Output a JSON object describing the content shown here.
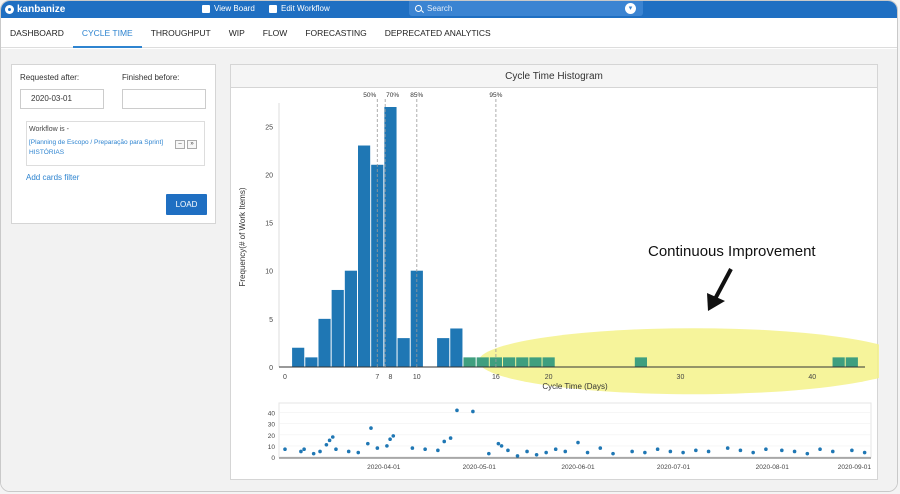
{
  "topbar": {
    "brand": "kanbanize",
    "view_board": "View Board",
    "edit_workflow": "Edit Workflow",
    "search_placeholder": "Search"
  },
  "tabs": [
    {
      "label": "DASHBOARD",
      "active": false
    },
    {
      "label": "CYCLE TIME",
      "active": true
    },
    {
      "label": "THROUGHPUT",
      "active": false
    },
    {
      "label": "WIP",
      "active": false
    },
    {
      "label": "FLOW",
      "active": false
    },
    {
      "label": "FORECASTING",
      "active": false
    },
    {
      "label": "DEPRECATED ANALYTICS",
      "active": false
    }
  ],
  "filters": {
    "requested_after_label": "Requested after:",
    "requested_after_value": "2020-03-01",
    "finished_before_label": "Finished before:",
    "finished_before_value": "",
    "workflow_label": "Workflow is -",
    "workflow_value": "[Planning de Escopo / Preparação para Sprint] HISTÓRIAS",
    "add_filter": "Add cards filter",
    "load_button": "LOAD"
  },
  "chart_title": "Cycle Time Histogram",
  "annotation": "Continuous Improvement",
  "colors": {
    "bar": "#1f77b4",
    "highlight_bar": "#3f9f7f",
    "ellipse": "#f5f28a",
    "topbar": "#1f6fc2"
  },
  "chart_data": [
    {
      "type": "bar",
      "title": "Cycle Time Histogram",
      "xlabel": "Cycle Time (Days)",
      "ylabel": "Frequency(# of Work Items)",
      "x": [
        1,
        2,
        3,
        4,
        5,
        6,
        7,
        8,
        9,
        10,
        11,
        12,
        13,
        14,
        15,
        16,
        17,
        18,
        19,
        20,
        27,
        42,
        43
      ],
      "values": [
        2,
        1,
        5,
        8,
        10,
        23,
        21,
        27,
        3,
        10,
        0,
        3,
        4,
        1,
        1,
        1,
        1,
        1,
        1,
        1,
        1,
        1,
        1
      ],
      "xlim": [
        0,
        44
      ],
      "ylim": [
        0,
        27
      ],
      "xticks": [
        0,
        7,
        8,
        10,
        16,
        20,
        30,
        40
      ],
      "yticks": [
        0,
        5,
        10,
        15,
        20,
        25
      ],
      "percentiles": [
        {
          "label": "50%",
          "value": 7
        },
        {
          "label": "70%",
          "value": 7.6
        },
        {
          "label": "85%",
          "value": 10
        },
        {
          "label": "95%",
          "value": 16
        }
      ]
    },
    {
      "type": "scatter",
      "x_dates": [
        "2020-04-01",
        "2020-05-01",
        "2020-06-01",
        "2020-07-01",
        "2020-08-01",
        "2020-09-01"
      ],
      "yticks": [
        0,
        10,
        20,
        30,
        40
      ],
      "ylim": [
        0,
        45
      ],
      "points": [
        [
          "2020-03-01",
          7
        ],
        [
          "2020-03-06",
          5
        ],
        [
          "2020-03-07",
          7
        ],
        [
          "2020-03-10",
          3
        ],
        [
          "2020-03-12",
          5
        ],
        [
          "2020-03-14",
          11
        ],
        [
          "2020-03-15",
          15
        ],
        [
          "2020-03-16",
          18
        ],
        [
          "2020-03-17",
          7
        ],
        [
          "2020-03-21",
          5
        ],
        [
          "2020-03-24",
          4
        ],
        [
          "2020-03-27",
          12
        ],
        [
          "2020-03-28",
          26
        ],
        [
          "2020-03-30",
          8
        ],
        [
          "2020-04-02",
          10
        ],
        [
          "2020-04-03",
          16
        ],
        [
          "2020-04-04",
          19
        ],
        [
          "2020-04-10",
          8
        ],
        [
          "2020-04-14",
          7
        ],
        [
          "2020-04-18",
          6
        ],
        [
          "2020-04-20",
          14
        ],
        [
          "2020-04-22",
          17
        ],
        [
          "2020-04-24",
          42
        ],
        [
          "2020-04-29",
          41
        ],
        [
          "2020-05-04",
          3
        ],
        [
          "2020-05-07",
          12
        ],
        [
          "2020-05-08",
          10
        ],
        [
          "2020-05-10",
          6
        ],
        [
          "2020-05-13",
          1
        ],
        [
          "2020-05-16",
          5
        ],
        [
          "2020-05-19",
          2
        ],
        [
          "2020-05-22",
          4
        ],
        [
          "2020-05-25",
          7
        ],
        [
          "2020-05-28",
          5
        ],
        [
          "2020-06-01",
          13
        ],
        [
          "2020-06-04",
          4
        ],
        [
          "2020-06-08",
          8
        ],
        [
          "2020-06-12",
          3
        ],
        [
          "2020-06-18",
          5
        ],
        [
          "2020-06-22",
          4
        ],
        [
          "2020-06-26",
          7
        ],
        [
          "2020-06-30",
          5
        ],
        [
          "2020-07-04",
          4
        ],
        [
          "2020-07-08",
          6
        ],
        [
          "2020-07-12",
          5
        ],
        [
          "2020-07-18",
          8
        ],
        [
          "2020-07-22",
          6
        ],
        [
          "2020-07-26",
          4
        ],
        [
          "2020-07-30",
          7
        ],
        [
          "2020-08-04",
          6
        ],
        [
          "2020-08-08",
          5
        ],
        [
          "2020-08-12",
          3
        ],
        [
          "2020-08-16",
          7
        ],
        [
          "2020-08-20",
          5
        ],
        [
          "2020-08-26",
          6
        ],
        [
          "2020-08-30",
          4
        ],
        [
          "2020-09-05",
          7
        ],
        [
          "2020-09-10",
          5
        ],
        [
          "2020-09-15",
          6
        ],
        [
          "2020-09-20",
          4
        ],
        [
          "2020-09-25",
          7
        ]
      ]
    }
  ]
}
